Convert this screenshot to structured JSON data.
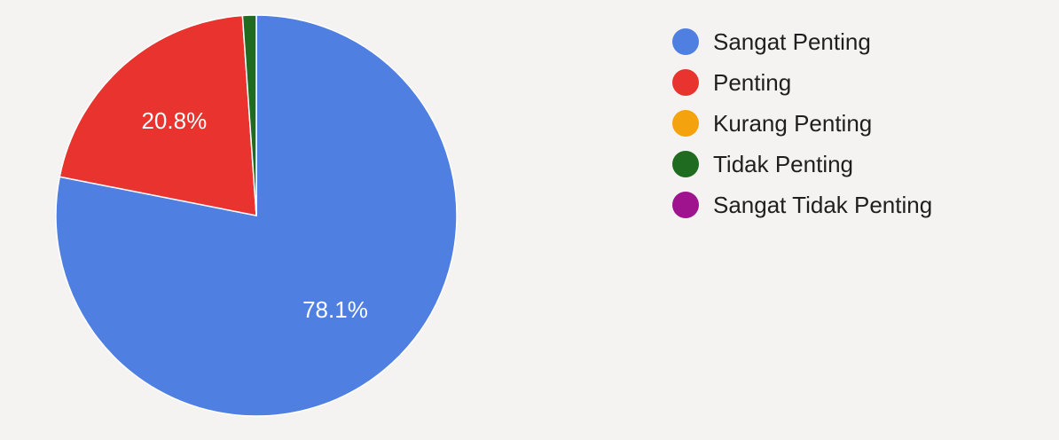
{
  "chart_data": {
    "type": "pie",
    "categories": [
      "Sangat Penting",
      "Penting",
      "Kurang Penting",
      "Tidak Penting",
      "Sangat Tidak Penting"
    ],
    "values": [
      78.1,
      20.8,
      0,
      1.1,
      0
    ],
    "colors": [
      "#4f7fe0",
      "#e8332e",
      "#f5a20f",
      "#1f6b1f",
      "#a0138e"
    ],
    "data_labels": [
      "78.1%",
      "20.8%",
      "",
      "",
      ""
    ],
    "legend": "right"
  }
}
